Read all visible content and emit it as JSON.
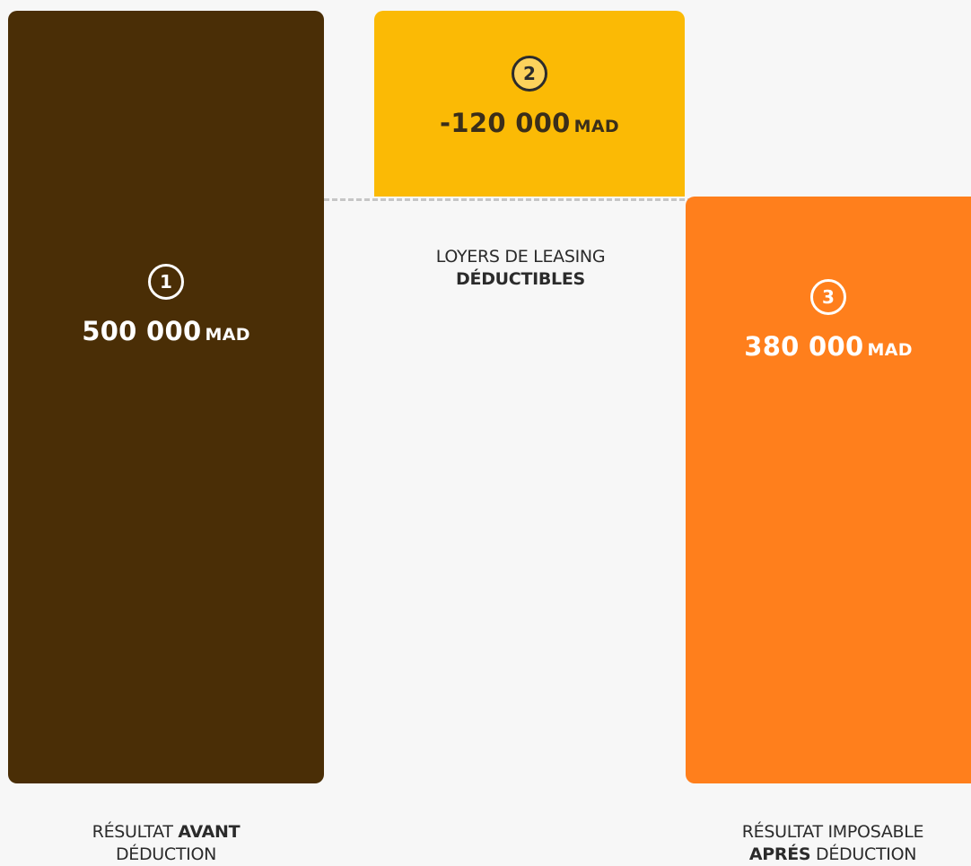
{
  "chart_data": {
    "type": "waterfall",
    "currency": "MAD",
    "bars": [
      {
        "step": "1",
        "value": 500000,
        "value_text": "500 000",
        "unit": "MAD",
        "color": "#4a2e06",
        "label_pre": "RÉSULTAT ",
        "label_bold": "AVANT",
        "label_post": "DÉDUCTION"
      },
      {
        "step": "2",
        "value": -120000,
        "value_text": "-120 000",
        "unit": "MAD",
        "color": "#fbba05",
        "label_pre": "LOYERS DE LEASING",
        "label_bold": "DÉDUCTIBLES",
        "label_post": ""
      },
      {
        "step": "3",
        "value": 380000,
        "value_text": "380 000",
        "unit": "MAD",
        "color": "#ff7f1c",
        "label_pre": "RÉSULTAT IMPOSABLE",
        "label_bold": "APRÉS",
        "label_post": " DÉDUCTION"
      }
    ]
  }
}
